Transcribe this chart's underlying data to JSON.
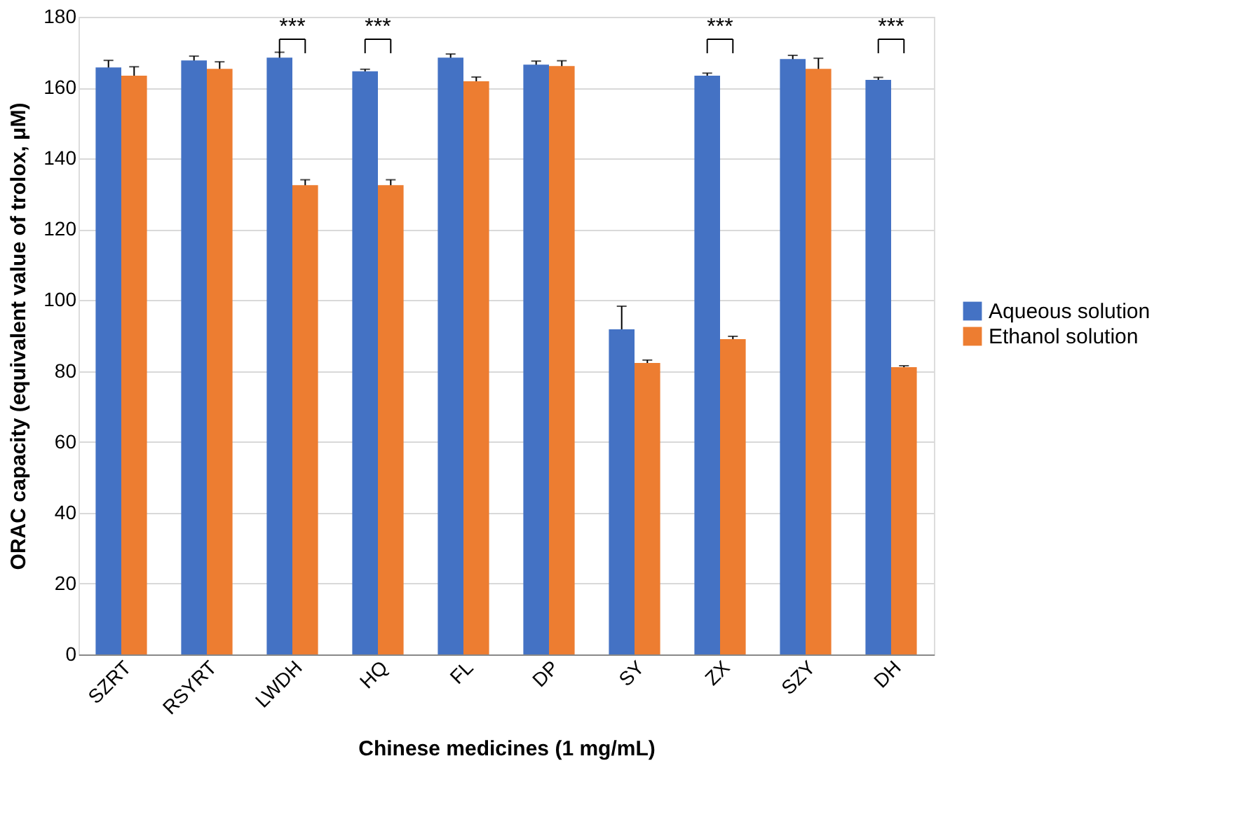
{
  "chart_data": {
    "type": "bar",
    "xlabel": "Chinese medicines (1 mg/mL)",
    "ylabel": "ORAC capacity (equivalent value of trolox, μM)",
    "categories": [
      "SZRT",
      "RSYRT",
      "LWDH",
      "HQ",
      "FL",
      "DP",
      "SY",
      "ZX",
      "SZY",
      "DH"
    ],
    "series": [
      {
        "name": "Aqueous solution",
        "color": "#4472c4",
        "values": [
          165.7,
          167.7,
          168.5,
          164.6,
          168.5,
          166.5,
          91.8,
          163.4,
          168.1,
          162.2
        ],
        "errors": [
          2,
          1.2,
          1.5,
          0.6,
          1,
          1,
          6.5,
          0.7,
          1,
          0.7
        ]
      },
      {
        "name": "Ethanol solution",
        "color": "#ed7d31",
        "values": [
          163.4,
          165.3,
          132.5,
          132.5,
          161.8,
          166.1,
          82.3,
          89,
          165.3,
          81.1
        ],
        "errors": [
          2.5,
          2,
          1.5,
          1.5,
          1.2,
          1.5,
          0.8,
          0.8,
          3,
          0.4
        ]
      }
    ],
    "ylim": [
      0,
      180
    ],
    "yticks": [
      0,
      20,
      40,
      60,
      80,
      100,
      120,
      140,
      160,
      180
    ],
    "grid": "y",
    "legend": "right",
    "annotations": [
      "***",
      "***",
      "***",
      "***"
    ]
  }
}
